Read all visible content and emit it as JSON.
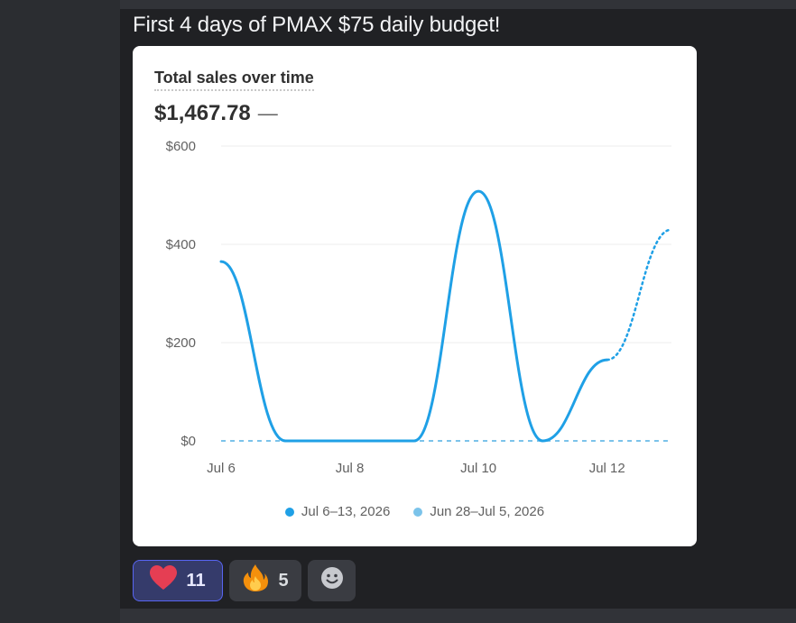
{
  "message": {
    "text": "First 4 days of PMAX $75 daily budget!"
  },
  "card": {
    "title": "Total sales over time",
    "total": "$1,467.78",
    "total_change": "—"
  },
  "chart_data": {
    "type": "line",
    "title": "Total sales over time",
    "y_tick_labels": [
      "$0",
      "$200",
      "$400",
      "$600"
    ],
    "x_tick_labels": [
      "Jul 6",
      "Jul 8",
      "Jul 10",
      "Jul 12"
    ],
    "ylim": [
      0,
      600
    ],
    "grid": true,
    "legend_position": "bottom",
    "categories": [
      "Jul 6",
      "Jul 7",
      "Jul 8",
      "Jul 9",
      "Jul 10",
      "Jul 11",
      "Jul 12",
      "Jul 13"
    ],
    "series": [
      {
        "name": "Jul 6–13, 2026",
        "values": [
          365,
          0,
          0,
          0,
          508,
          0,
          165,
          430
        ],
        "color": "#1fa0e6",
        "projected_from_index": 6
      },
      {
        "name": "Jun 28–Jul 5, 2026",
        "values": [
          0,
          0,
          0,
          0,
          0,
          0,
          0,
          0
        ],
        "color": "#7bc3ea",
        "dashed": true
      }
    ]
  },
  "reactions": [
    {
      "icon": "heart-icon",
      "emoji": "❤",
      "count": "11",
      "active": true
    },
    {
      "icon": "fire-icon",
      "emoji": "🔥",
      "count": "5",
      "active": false
    },
    {
      "icon": "add-reaction-icon",
      "emoji": "☻",
      "count": "",
      "active": false
    }
  ],
  "colors": {
    "accent": "#1fa0e6",
    "comparison": "#7bc3ea",
    "reaction_active_border": "#5865f2"
  }
}
